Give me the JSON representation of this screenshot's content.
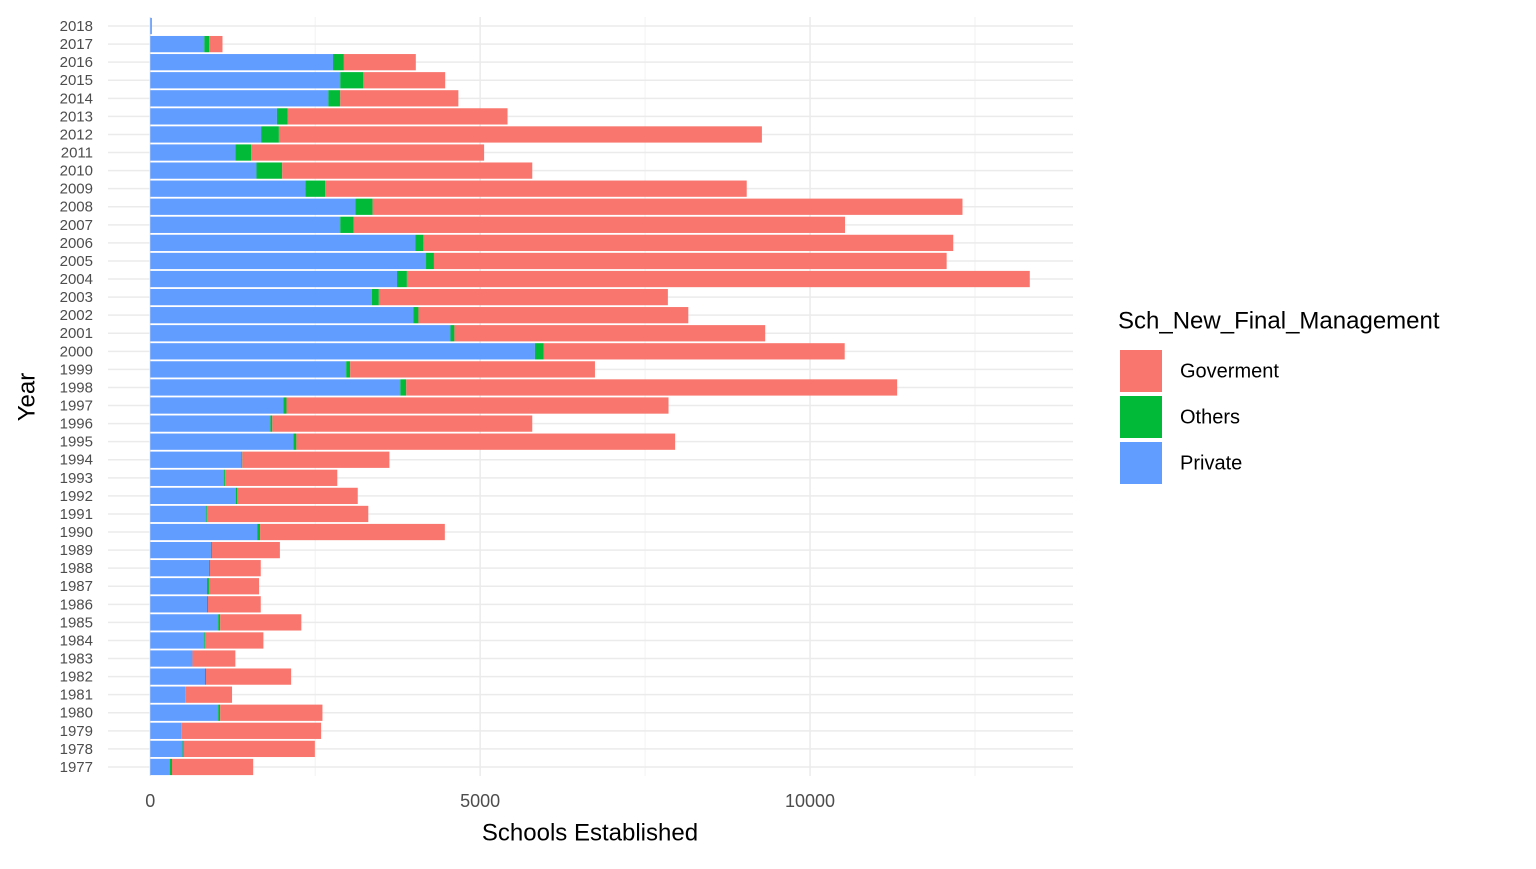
{
  "chart_data": {
    "type": "stacked-barh",
    "x_label": "Schools Established",
    "y_label": "Year",
    "legend_title": "Sch_New_Final_Management",
    "categories": [
      "2018",
      "2017",
      "2016",
      "2015",
      "2014",
      "2013",
      "2012",
      "2011",
      "2010",
      "2009",
      "2008",
      "2007",
      "2006",
      "2005",
      "2004",
      "2003",
      "2002",
      "2001",
      "2000",
      "1999",
      "1998",
      "1997",
      "1996",
      "1995",
      "1994",
      "1993",
      "1992",
      "1991",
      "1990",
      "1989",
      "1988",
      "1987",
      "1986",
      "1985",
      "1984",
      "1983",
      "1982",
      "1981",
      "1980",
      "1979",
      "1978",
      "1977"
    ],
    "series": [
      {
        "name": "Goverment",
        "color": "#F8766D",
        "values": [
          0,
          200,
          1090,
          1240,
          1790,
          3330,
          7320,
          3530,
          3790,
          6390,
          8940,
          7450,
          8030,
          7770,
          9440,
          4380,
          4090,
          4710,
          4560,
          3710,
          7440,
          5790,
          3940,
          5740,
          2230,
          1700,
          1830,
          2440,
          2800,
          1030,
          770,
          760,
          800,
          1230,
          880,
          650,
          1290,
          710,
          1550,
          2120,
          1990,
          1230
        ]
      },
      {
        "name": "Others",
        "color": "#00BA38",
        "values": [
          0,
          75,
          165,
          350,
          180,
          165,
          270,
          240,
          390,
          300,
          260,
          200,
          120,
          120,
          150,
          105,
          75,
          60,
          135,
          60,
          90,
          45,
          30,
          45,
          15,
          15,
          15,
          15,
          45,
          15,
          15,
          30,
          15,
          30,
          15,
          0,
          15,
          0,
          30,
          0,
          15,
          30
        ]
      },
      {
        "name": "Private",
        "color": "#619CFF",
        "values": [
          25,
          820,
          2770,
          2880,
          2700,
          1920,
          1680,
          1290,
          1610,
          2350,
          3110,
          2880,
          4020,
          4180,
          3740,
          3360,
          3990,
          4550,
          5830,
          2970,
          3790,
          2020,
          1820,
          2170,
          1380,
          1120,
          1300,
          850,
          1620,
          920,
          890,
          860,
          860,
          1030,
          820,
          640,
          830,
          530,
          1030,
          470,
          490,
          300
        ]
      }
    ],
    "xlim": [
      -640,
      13985
    ],
    "xticks": [
      0,
      5000,
      10000
    ],
    "xminor": [
      2500,
      7500,
      12500
    ],
    "grid": true
  }
}
